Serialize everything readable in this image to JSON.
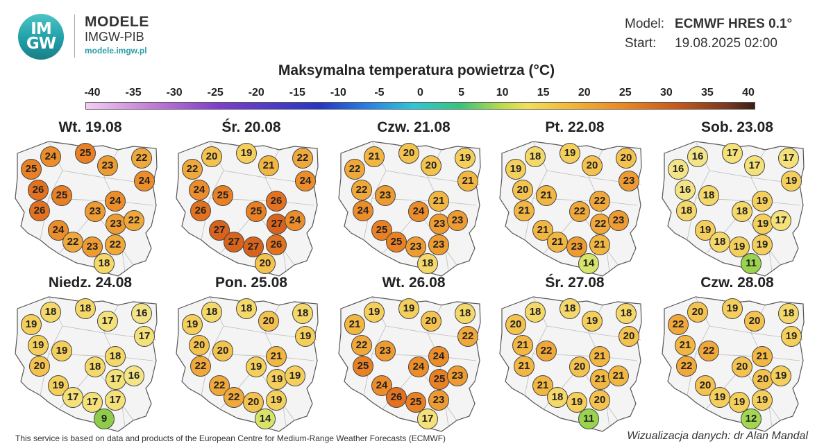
{
  "header": {
    "logo_text_top": "IM",
    "logo_text_bottom": "GW",
    "brand_title": "MODELE",
    "brand_subtitle": "IMGW-PIB",
    "brand_url": "modele.imgw.pl",
    "model_label": "Model:",
    "model_value": "ECMWF HRES 0.1°",
    "start_label": "Start:",
    "start_value": "19.08.2025 02:00",
    "title": "Maksymalna temperatura powietrza (°C)"
  },
  "legend": {
    "ticks": [
      "-40",
      "-35",
      "-30",
      "-25",
      "-20",
      "-15",
      "-10",
      "-5",
      "0",
      "5",
      "10",
      "15",
      "20",
      "25",
      "30",
      "35",
      "40"
    ],
    "min": -40,
    "max": 40
  },
  "colors": {
    "t9": "#8fcc4a",
    "t11": "#9ad34e",
    "t12": "#a3d752",
    "t14": "#d8e36a",
    "t16": "#f3e587",
    "t17": "#f4e17a",
    "t18": "#f5d86a",
    "t19": "#f5cf5c",
    "t20": "#f4c24f",
    "t21": "#f2b643",
    "t22": "#f0a83a",
    "t23": "#ee9b31",
    "t24": "#ec8d2a",
    "t25": "#e98024",
    "t26": "#e27220",
    "t27": "#d8631d"
  },
  "maps": [
    {
      "title": "Wt. 19.08",
      "values": [
        24,
        25,
        22,
        25,
        23,
        24,
        26,
        25,
        24,
        26,
        23,
        23,
        22,
        24,
        22,
        23,
        22,
        18
      ]
    },
    {
      "title": "Śr. 20.08",
      "values": [
        20,
        19,
        22,
        22,
        21,
        24,
        24,
        25,
        26,
        26,
        25,
        27,
        24,
        27,
        27,
        27,
        26,
        20
      ]
    },
    {
      "title": "Czw. 21.08",
      "values": [
        21,
        20,
        19,
        22,
        20,
        21,
        22,
        23,
        21,
        24,
        24,
        23,
        23,
        25,
        25,
        23,
        23,
        18
      ]
    },
    {
      "title": "Pt. 22.08",
      "values": [
        18,
        19,
        20,
        19,
        20,
        23,
        20,
        21,
        22,
        21,
        22,
        22,
        23,
        21,
        21,
        23,
        21,
        14
      ]
    },
    {
      "title": "Sob. 23.08",
      "values": [
        16,
        17,
        17,
        16,
        17,
        19,
        16,
        18,
        19,
        18,
        18,
        19,
        17,
        19,
        18,
        19,
        19,
        11
      ]
    },
    {
      "title": "Niedz. 24.08",
      "values": [
        18,
        18,
        16,
        19,
        17,
        17,
        19,
        19,
        18,
        20,
        18,
        17,
        16,
        19,
        17,
        17,
        17,
        9
      ]
    },
    {
      "title": "Pon. 25.08",
      "values": [
        18,
        18,
        18,
        19,
        20,
        19,
        20,
        20,
        21,
        22,
        19,
        19,
        19,
        22,
        22,
        20,
        19,
        14
      ]
    },
    {
      "title": "Wt. 26.08",
      "values": [
        19,
        19,
        18,
        21,
        20,
        22,
        22,
        23,
        24,
        25,
        24,
        25,
        23,
        24,
        26,
        25,
        23,
        17
      ]
    },
    {
      "title": "Śr. 27.08",
      "values": [
        18,
        18,
        18,
        20,
        19,
        20,
        21,
        22,
        21,
        21,
        20,
        21,
        21,
        21,
        18,
        19,
        20,
        11
      ]
    },
    {
      "title": "Czw. 28.08",
      "values": [
        20,
        19,
        18,
        22,
        20,
        19,
        21,
        22,
        21,
        22,
        20,
        20,
        19,
        20,
        19,
        19,
        19,
        12
      ]
    }
  ],
  "footer": {
    "source": "This service is based on data and products of the European Centre for Medium-Range Weather Forecasts (ECMWF)",
    "credit": "Wizualizacja danych: dr Alan Mandal"
  }
}
